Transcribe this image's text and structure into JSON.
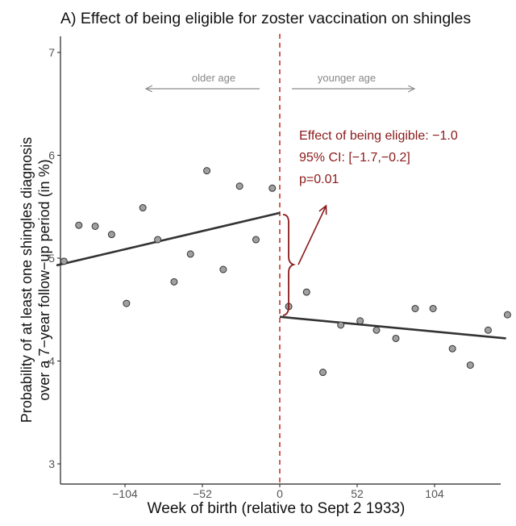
{
  "chart_data": {
    "type": "scatter",
    "title": "A) Effect of being eligible for zoster vaccination on shingles",
    "xlabel": "Week of birth (relative to Sept 2 1933)",
    "ylabel_lines": [
      "Probability of at least one shingles diagnosis",
      "over a 7−year follow−up period (in %)"
    ],
    "xlim": [
      -155,
      155
    ],
    "ylim": [
      2.9,
      7.1
    ],
    "x_ticks": [
      {
        "value": -104,
        "label": "−104"
      },
      {
        "value": -52,
        "label": "−52"
      },
      {
        "value": 0,
        "label": "0"
      },
      {
        "value": 52,
        "label": "52"
      },
      {
        "value": 104,
        "label": "104"
      }
    ],
    "y_ticks": [
      {
        "value": 3,
        "label": "3"
      },
      {
        "value": 4,
        "label": "4"
      },
      {
        "value": 5,
        "label": "5"
      },
      {
        "value": 6,
        "label": "6"
      },
      {
        "value": 7,
        "label": "7"
      }
    ],
    "points": [
      {
        "x": -145,
        "y": 4.97
      },
      {
        "x": -135,
        "y": 5.32
      },
      {
        "x": -124,
        "y": 5.31
      },
      {
        "x": -113,
        "y": 5.23
      },
      {
        "x": -103,
        "y": 4.56
      },
      {
        "x": -92,
        "y": 5.49
      },
      {
        "x": -82,
        "y": 5.18
      },
      {
        "x": -71,
        "y": 4.77
      },
      {
        "x": -60,
        "y": 5.04
      },
      {
        "x": -49,
        "y": 5.85
      },
      {
        "x": -38,
        "y": 4.89
      },
      {
        "x": -27,
        "y": 5.7
      },
      {
        "x": -16,
        "y": 5.18
      },
      {
        "x": -5,
        "y": 5.68
      },
      {
        "x": 6,
        "y": 4.53
      },
      {
        "x": 18,
        "y": 4.67
      },
      {
        "x": 29,
        "y": 3.89
      },
      {
        "x": 41,
        "y": 4.35
      },
      {
        "x": 54,
        "y": 4.39
      },
      {
        "x": 65,
        "y": 4.3
      },
      {
        "x": 78,
        "y": 4.22
      },
      {
        "x": 91,
        "y": 4.51
      },
      {
        "x": 103,
        "y": 4.51
      },
      {
        "x": 116,
        "y": 4.12
      },
      {
        "x": 128,
        "y": 3.96
      },
      {
        "x": 140,
        "y": 4.3
      },
      {
        "x": 153,
        "y": 4.45
      }
    ],
    "fit_lines": [
      {
        "name": "left",
        "x": [
          -150,
          0
        ],
        "y": [
          4.93,
          5.44
        ]
      },
      {
        "name": "right",
        "x": [
          0,
          152
        ],
        "y": [
          4.43,
          4.22
        ]
      }
    ],
    "cutoff_x": 0,
    "direction_labels": {
      "left": "older age",
      "right": "younger age"
    },
    "annotation": [
      "Effect of being eligible: −1.0",
      "95% CI: [−1.7,−0.2]",
      "p=0.01"
    ],
    "colors": {
      "annotation": "#8b1a1a",
      "cutoff": "#c0392b",
      "points_fill": "#a0a0a0",
      "line": "#333333"
    }
  }
}
